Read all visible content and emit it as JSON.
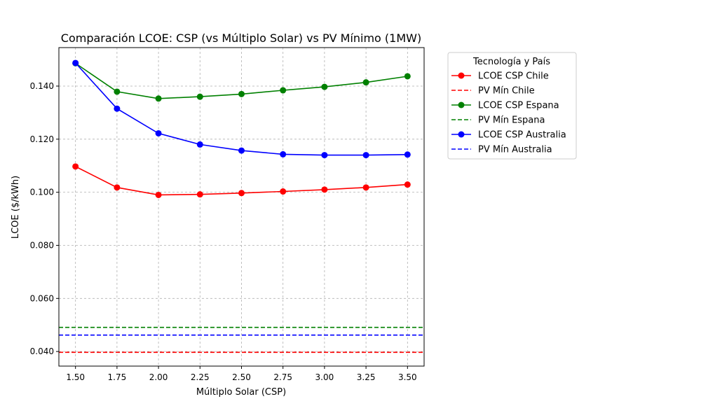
{
  "chart_data": {
    "type": "line",
    "title": "Comparación LCOE: CSP (vs Múltiplo Solar) vs PV Mínimo (1MW)",
    "xlabel": "Múltiplo Solar (CSP)",
    "ylabel": "LCOE ($/kWh)",
    "x": [
      1.5,
      1.75,
      2.0,
      2.25,
      2.5,
      2.75,
      3.0,
      3.25,
      3.5
    ],
    "x_tick_labels": [
      "1.50",
      "1.75",
      "2.00",
      "2.25",
      "2.50",
      "2.75",
      "3.00",
      "3.25",
      "3.50"
    ],
    "y_ticks": [
      0.04,
      0.06,
      0.08,
      0.1,
      0.12,
      0.14
    ],
    "y_tick_labels": [
      "0.040",
      "0.060",
      "0.080",
      "0.100",
      "0.120",
      "0.140"
    ],
    "xlim": [
      1.4,
      3.6
    ],
    "ylim": [
      0.0345,
      0.1545
    ],
    "grid": true,
    "legend_title": "Tecnología y País",
    "legend_position": "outside upper right",
    "series": [
      {
        "name": "LCOE CSP Chile",
        "style": "line-marker",
        "color": "#ff0000",
        "values": [
          0.1097,
          0.1018,
          0.099,
          0.0992,
          0.0997,
          0.1003,
          0.101,
          0.1018,
          0.1029
        ]
      },
      {
        "name": "PV Mín Chile",
        "style": "dashed",
        "color": "#ff0000",
        "value": 0.0397
      },
      {
        "name": "LCOE CSP Espana",
        "style": "line-marker",
        "color": "#008000",
        "values": [
          0.1486,
          0.1379,
          0.1353,
          0.136,
          0.137,
          0.1384,
          0.1397,
          0.1414,
          0.1437
        ]
      },
      {
        "name": "PV Mín Espana",
        "style": "dashed",
        "color": "#008000",
        "value": 0.0491
      },
      {
        "name": "LCOE CSP Australia",
        "style": "line-marker",
        "color": "#0000ff",
        "values": [
          0.1487,
          0.1315,
          0.1222,
          0.118,
          0.1157,
          0.1143,
          0.114,
          0.114,
          0.1142
        ]
      },
      {
        "name": "PV Mín Australia",
        "style": "dashed",
        "color": "#0000ff",
        "value": 0.0462
      }
    ]
  }
}
